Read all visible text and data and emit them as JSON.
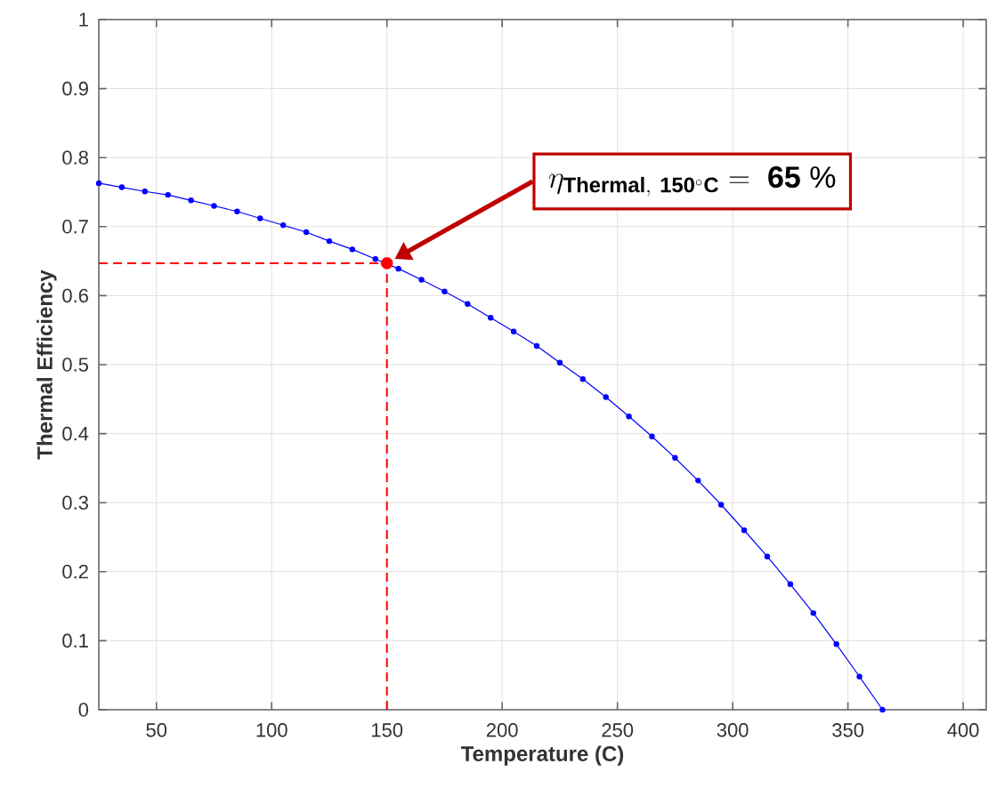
{
  "chart_data": {
    "type": "line",
    "xlabel": "Temperature (C)",
    "ylabel": "Thermal Efficiency",
    "xlim": [
      25,
      410
    ],
    "ylim": [
      0,
      1
    ],
    "xticks": [
      50,
      100,
      150,
      200,
      250,
      300,
      350,
      400
    ],
    "yticks": [
      0,
      0.1,
      0.2,
      0.3,
      0.4,
      0.5,
      0.6,
      0.7,
      0.8,
      0.9,
      1
    ],
    "grid": true,
    "marker": "circle",
    "line_style": "solid",
    "series": [
      {
        "color": "#0000ff",
        "x": [
          25,
          35,
          45,
          55,
          65,
          75,
          85,
          95,
          105,
          115,
          125,
          135,
          145,
          155,
          165,
          175,
          185,
          195,
          205,
          215,
          225,
          235,
          245,
          255,
          265,
          275,
          285,
          295,
          305,
          315,
          325,
          335,
          345,
          355,
          365
        ],
        "values": [
          0.763,
          0.757,
          0.751,
          0.746,
          0.738,
          0.73,
          0.722,
          0.712,
          0.702,
          0.692,
          0.679,
          0.667,
          0.653,
          0.639,
          0.623,
          0.606,
          0.588,
          0.568,
          0.548,
          0.527,
          0.503,
          0.479,
          0.453,
          0.425,
          0.396,
          0.365,
          0.332,
          0.297,
          0.26,
          0.222,
          0.182,
          0.14,
          0.095,
          0.048,
          0
        ]
      },
      {
        "type": "scatter",
        "color": "#ff0000",
        "x": [
          150
        ],
        "values": [
          0.647
        ]
      }
    ],
    "ref_lines": [
      {
        "axis": "y",
        "value": 0.647,
        "color": "#ff0000",
        "line_style": "dashed"
      },
      {
        "axis": "x",
        "value": 150,
        "color": "#ff0000",
        "line_style": "dashed"
      }
    ],
    "annotations": [
      "\\eta_{\\mathbf{Thermal,\\ 150^{\\circ}C}}\\ \\mathbf{=\\ 65\\ \\%}"
    ]
  }
}
